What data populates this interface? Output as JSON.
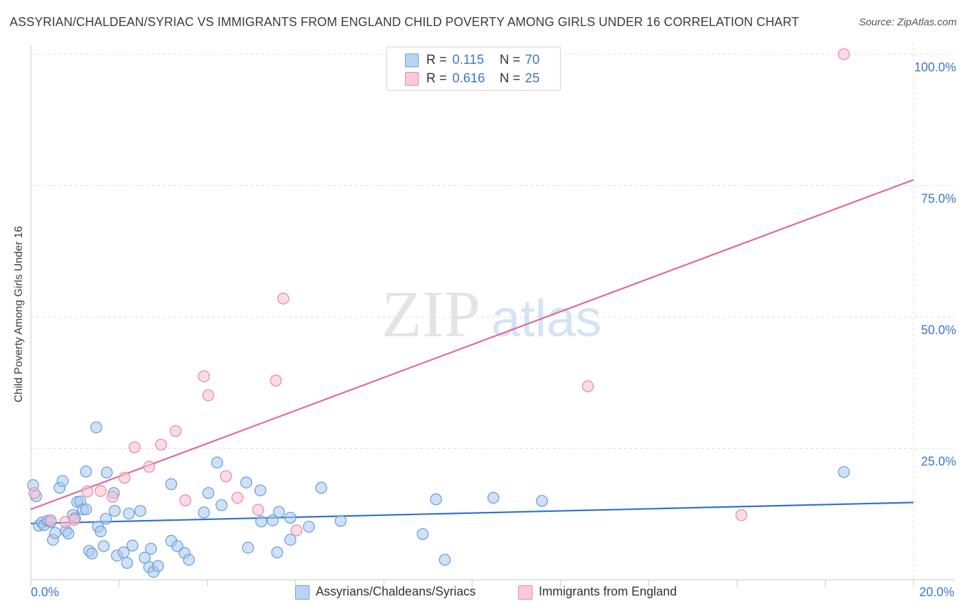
{
  "title": "ASSYRIAN/CHALDEAN/SYRIAC VS IMMIGRANTS FROM ENGLAND CHILD POVERTY AMONG GIRLS UNDER 16 CORRELATION CHART",
  "source": "Source: ZipAtlas.com",
  "watermark": {
    "zip": "ZIP",
    "atlas": "atlas"
  },
  "legend": {
    "r_label": "R =",
    "n_label": "N =",
    "series": [
      {
        "name": "Assyrians/Chaldeans/Syriacs",
        "r": "0.115",
        "n": "70"
      },
      {
        "name": "Immigrants from England",
        "r": "0.616",
        "n": "25"
      }
    ]
  },
  "colors": {
    "blue_fill": "#a9c8f0",
    "blue_stroke": "#6b9fdc",
    "blue_line": "#2f6fce",
    "pink_fill": "#f7bfd0",
    "pink_stroke": "#e88aa8",
    "pink_line": "#e0679a",
    "tick_label": "#3b78c6",
    "grid": "#dcdcdc"
  },
  "chart_data": {
    "type": "scatter",
    "title": "ASSYRIAN/CHALDEAN/SYRIAC VS IMMIGRANTS FROM ENGLAND CHILD POVERTY AMONG GIRLS UNDER 16 CORRELATION CHART",
    "xlabel": "",
    "ylabel": "Child Poverty Among Girls Under 16",
    "xlim": [
      0,
      20
    ],
    "ylim": [
      0,
      100
    ],
    "x_ticks": [
      0,
      20
    ],
    "x_tick_labels": [
      "0.0%",
      "20.0%"
    ],
    "y_ticks": [
      25,
      50,
      75,
      100
    ],
    "y_tick_labels": [
      "25.0%",
      "50.0%",
      "75.0%",
      "100.0%"
    ],
    "grid": true,
    "legend_position": "top-center",
    "series": [
      {
        "name": "Assyrians/Chaldeans/Syriacs",
        "color": "#6b9fdc",
        "trend": {
          "x": [
            0,
            20
          ],
          "y": [
            10.7,
            14.7
          ]
        },
        "points": [
          [
            0.05,
            18.0
          ],
          [
            0.12,
            15.9
          ],
          [
            0.18,
            10.3
          ],
          [
            0.25,
            10.9
          ],
          [
            0.3,
            10.4
          ],
          [
            0.38,
            11.2
          ],
          [
            0.45,
            11.0
          ],
          [
            0.5,
            7.6
          ],
          [
            0.55,
            8.9
          ],
          [
            0.65,
            17.5
          ],
          [
            0.72,
            18.8
          ],
          [
            0.8,
            9.3
          ],
          [
            0.85,
            8.8
          ],
          [
            0.95,
            12.3
          ],
          [
            1.0,
            11.7
          ],
          [
            1.05,
            14.8
          ],
          [
            1.12,
            14.9
          ],
          [
            1.18,
            13.4
          ],
          [
            1.25,
            20.6
          ],
          [
            1.25,
            13.4
          ],
          [
            1.32,
            5.5
          ],
          [
            1.38,
            5.0
          ],
          [
            1.48,
            29.0
          ],
          [
            1.52,
            10.1
          ],
          [
            1.58,
            9.2
          ],
          [
            1.65,
            6.4
          ],
          [
            1.7,
            11.6
          ],
          [
            1.72,
            20.4
          ],
          [
            1.88,
            16.5
          ],
          [
            1.9,
            13.1
          ],
          [
            1.95,
            4.6
          ],
          [
            2.1,
            5.2
          ],
          [
            2.18,
            3.2
          ],
          [
            2.22,
            12.6
          ],
          [
            2.3,
            6.5
          ],
          [
            2.48,
            13.1
          ],
          [
            2.58,
            4.2
          ],
          [
            2.68,
            2.4
          ],
          [
            2.72,
            5.9
          ],
          [
            2.78,
            1.5
          ],
          [
            2.88,
            2.6
          ],
          [
            3.18,
            7.4
          ],
          [
            3.18,
            18.2
          ],
          [
            3.32,
            6.4
          ],
          [
            3.48,
            5.1
          ],
          [
            3.58,
            3.8
          ],
          [
            3.92,
            12.8
          ],
          [
            4.02,
            16.5
          ],
          [
            4.22,
            22.3
          ],
          [
            4.32,
            14.2
          ],
          [
            4.88,
            18.5
          ],
          [
            4.92,
            6.1
          ],
          [
            5.2,
            17.0
          ],
          [
            5.22,
            11.1
          ],
          [
            5.48,
            11.3
          ],
          [
            5.58,
            5.2
          ],
          [
            5.62,
            12.9
          ],
          [
            5.88,
            11.8
          ],
          [
            5.88,
            7.6
          ],
          [
            6.3,
            10.1
          ],
          [
            6.58,
            17.5
          ],
          [
            7.02,
            11.2
          ],
          [
            8.88,
            8.7
          ],
          [
            9.18,
            15.3
          ],
          [
            9.38,
            3.8
          ],
          [
            10.48,
            15.6
          ],
          [
            11.58,
            15.0
          ],
          [
            18.42,
            20.5
          ]
        ]
      },
      {
        "name": "Immigrants from England",
        "color": "#e88aa8",
        "trend": {
          "x": [
            0,
            20
          ],
          "y": [
            13.4,
            76.1
          ]
        },
        "points": [
          [
            0.08,
            16.5
          ],
          [
            0.45,
            11.3
          ],
          [
            0.78,
            11.0
          ],
          [
            0.98,
            11.4
          ],
          [
            1.28,
            16.8
          ],
          [
            1.58,
            16.9
          ],
          [
            1.85,
            15.8
          ],
          [
            2.12,
            19.4
          ],
          [
            2.35,
            25.2
          ],
          [
            2.68,
            21.5
          ],
          [
            2.95,
            25.7
          ],
          [
            3.28,
            28.3
          ],
          [
            3.5,
            15.1
          ],
          [
            3.92,
            38.7
          ],
          [
            4.02,
            35.1
          ],
          [
            4.42,
            19.7
          ],
          [
            4.68,
            15.6
          ],
          [
            5.15,
            13.3
          ],
          [
            5.55,
            37.9
          ],
          [
            5.72,
            53.5
          ],
          [
            6.02,
            9.4
          ],
          [
            12.62,
            36.8
          ],
          [
            16.1,
            12.3
          ],
          [
            18.42,
            100.0
          ]
        ]
      }
    ]
  }
}
